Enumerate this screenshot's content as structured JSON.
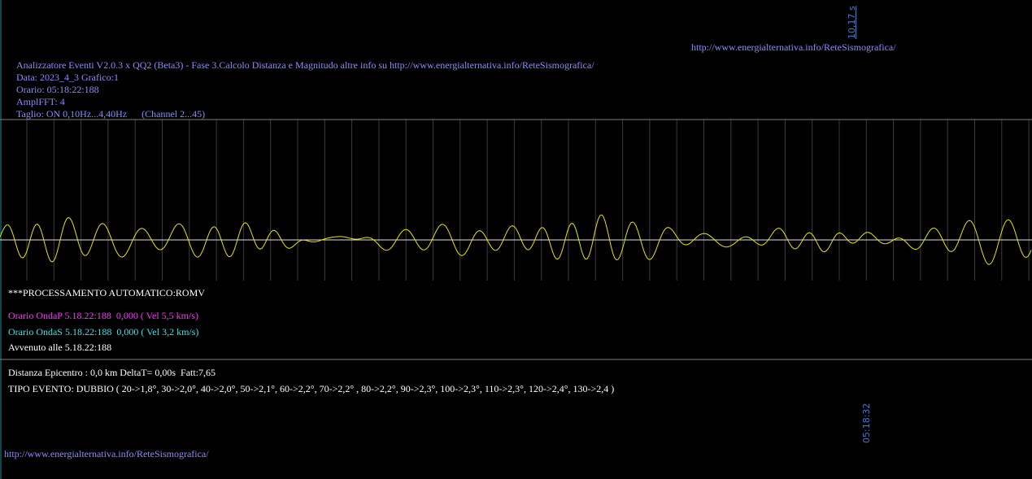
{
  "top_right": {
    "duration": "10,17 s",
    "url": "http://www.energialternativa.info/ReteSismografica/"
  },
  "header": {
    "lines": [
      "Analizzatore Eventi V2.0.3 x QQ2 (Beta3) - Fase 3.Calcolo Distanza e Magnitudo altre info su http://www.energialternativa.info/ReteSismografica/",
      "Data: 2023_4_3 Grafico:1",
      "Orario: 05:18:22:188",
      "AmplFFT: 4",
      "Taglio: ON 0,10Hz...4,40Hz      (Channel 2...45)"
    ]
  },
  "processing": {
    "title": "***PROCESSAMENTO AUTOMATICO:ROMV",
    "wave_p": "Orario OndaP 5.18.22:188  0,000 ( Vel 5,5 km/s)",
    "wave_s": "Orario OndaS 5.18.22:188  0,000 ( Vel 3,2 km/s)",
    "occurred": "Avvenuto alle 5.18.22:188"
  },
  "result": {
    "distance": "Distanza Epicentro : 0,0 km DeltaT= 0,00s  Fatt:7,65",
    "event_type": "TIPO EVENTO: DUBBIO ( 20->1,8°, 30->2,0°, 40->2,0°, 50->2,1°, 60->2,2°, 70->2,2° , 80->2,2°, 90->2,3°, 100->2,3°, 110->2,3°, 120->2,4°, 130->2,4 )"
  },
  "end_time": "05:18:32",
  "footer": {
    "url": "http://www.energialternativa.info/ReteSismografica/"
  }
}
